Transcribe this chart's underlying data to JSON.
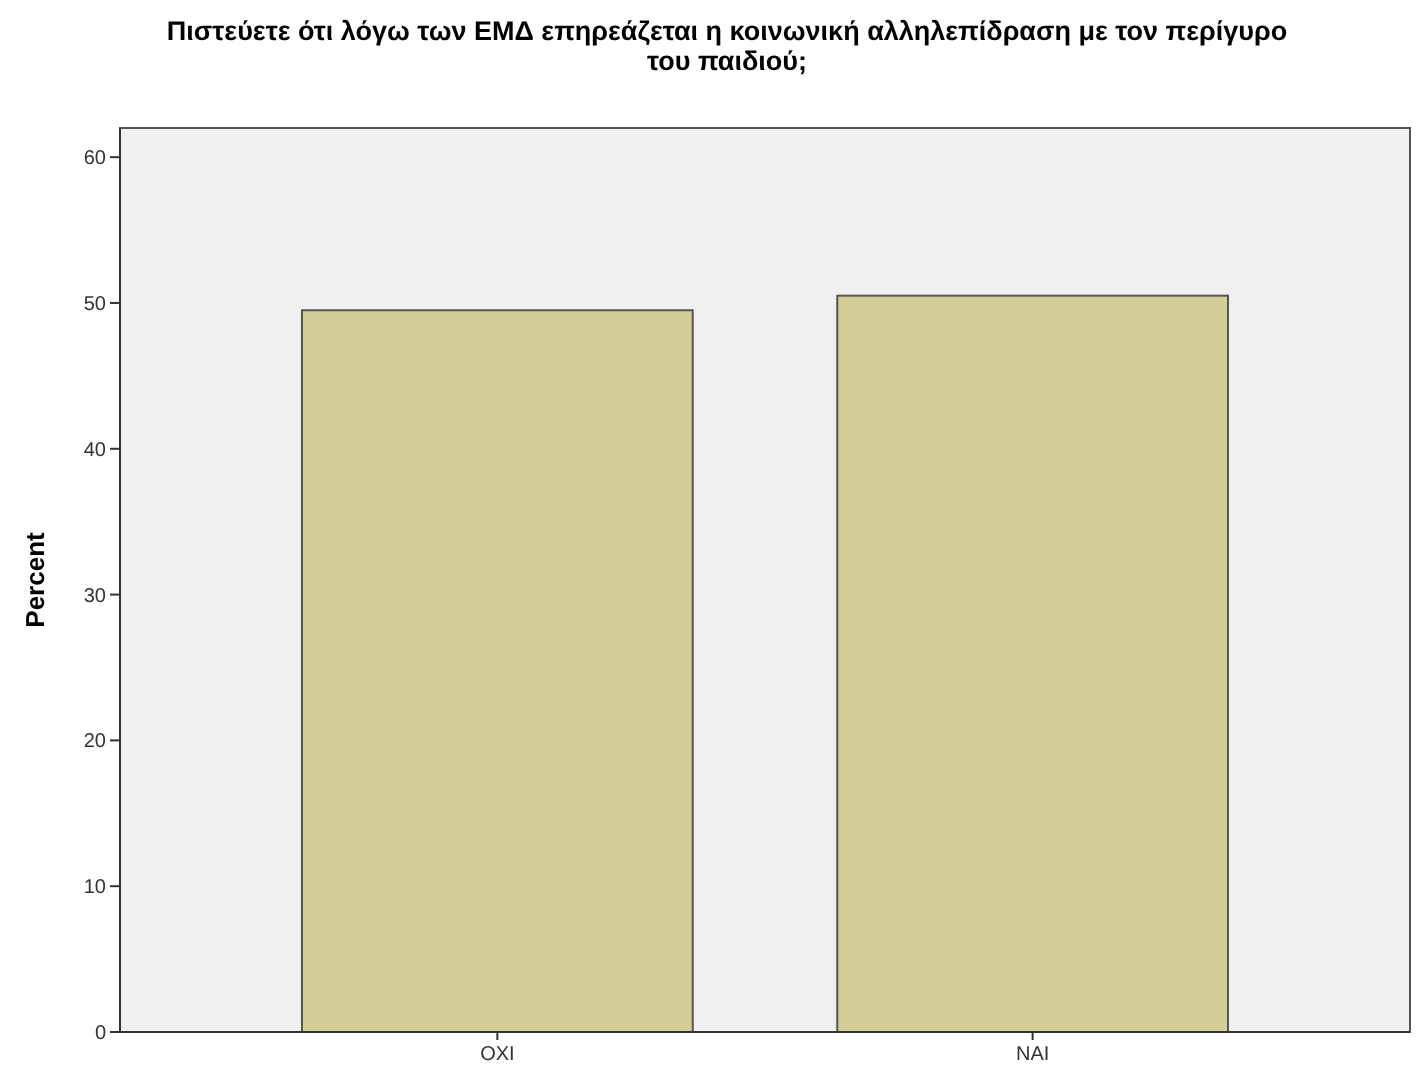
{
  "chart_data": {
    "type": "bar",
    "title": "Πιστεύετε ότι λόγω των ΕΜΔ επηρεάζεται η κοινωνική αλληλεπίδραση με τον περίγυρο του παιδιού;",
    "ylabel": "Percent",
    "categories": [
      "ΟΧΙ",
      "ΝΑΙ"
    ],
    "values": [
      49.5,
      50.5
    ],
    "color": "#d3ce97",
    "ylim": [
      0,
      62
    ],
    "yticks": [
      0,
      10,
      20,
      30,
      40,
      50,
      60
    ],
    "grid": false
  }
}
